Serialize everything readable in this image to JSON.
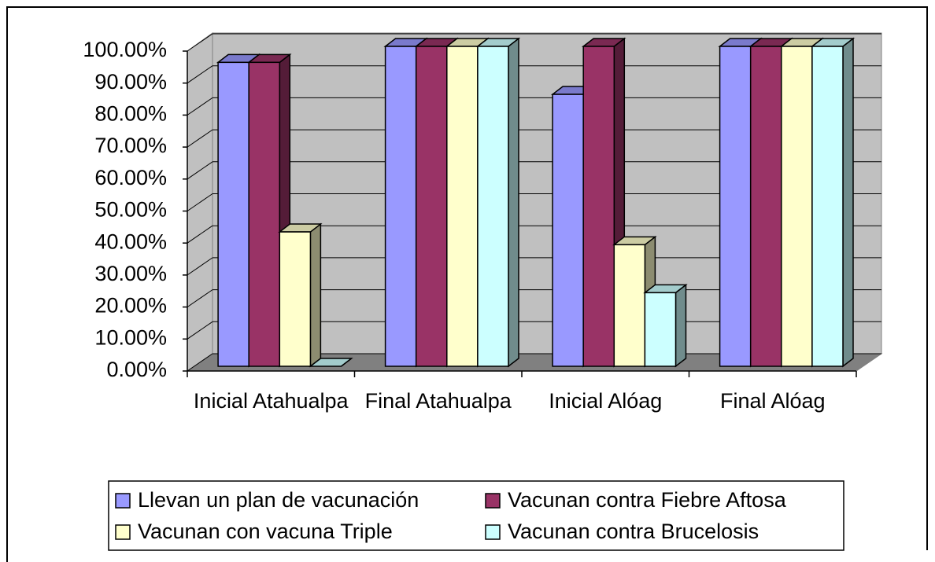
{
  "chart_data": {
    "type": "bar3d",
    "categories": [
      "Inicial Atahualpa",
      "Final Atahualpa",
      "Inicial Alóag",
      "Final Alóag"
    ],
    "series": [
      {
        "name": "Llevan un plan de vacunación",
        "color": "#9999ff",
        "values": [
          95,
          100,
          85,
          100
        ]
      },
      {
        "name": "Vacunan contra Fiebre Aftosa",
        "color": "#993366",
        "values": [
          95,
          100,
          100,
          100
        ]
      },
      {
        "name": "Vacunan con vacuna Triple",
        "color": "#ffffcc",
        "values": [
          42,
          100,
          38,
          100
        ]
      },
      {
        "name": "Vacunan contra Brucelosis",
        "color": "#ccffff",
        "values": [
          0,
          100,
          23,
          100
        ]
      }
    ],
    "ylim": [
      0,
      100
    ],
    "yticks": [
      {
        "value": 0,
        "label": "0.00%"
      },
      {
        "value": 10,
        "label": "10.00%"
      },
      {
        "value": 20,
        "label": "20.00%"
      },
      {
        "value": 30,
        "label": "30.00%"
      },
      {
        "value": 40,
        "label": "40.00%"
      },
      {
        "value": 50,
        "label": "50.00%"
      },
      {
        "value": 60,
        "label": "60.00%"
      },
      {
        "value": 70,
        "label": "70.00%"
      },
      {
        "value": 80,
        "label": "80.00%"
      },
      {
        "value": 90,
        "label": "90.00%"
      },
      {
        "value": 100,
        "label": "100.00%"
      }
    ],
    "grid": true,
    "legend": "bottom"
  }
}
